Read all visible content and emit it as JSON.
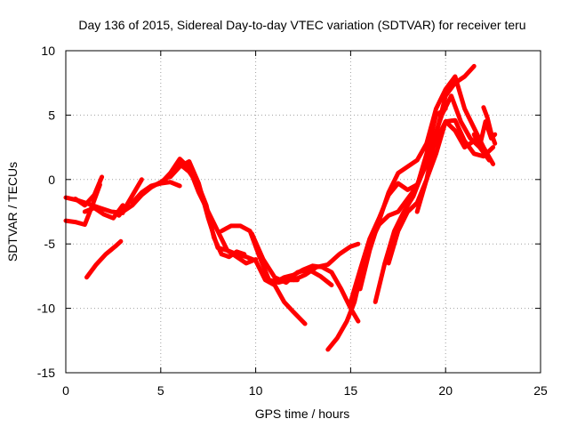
{
  "chart_data": {
    "type": "line",
    "title": "Day 136 of 2015, Sidereal Day-to-day VTEC variation (SDTVAR) for receiver teru",
    "xlabel": "GPS time / hours",
    "ylabel": "SDTVAR / TECUs",
    "xlim": [
      0,
      25
    ],
    "ylim": [
      -15,
      10
    ],
    "xticks": [
      0,
      5,
      10,
      15,
      20,
      25
    ],
    "yticks": [
      -15,
      -10,
      -5,
      0,
      5,
      10
    ],
    "xtick_labels": [
      "0",
      "5",
      "10",
      "15",
      "20",
      "25"
    ],
    "ytick_labels": [
      "-15",
      "-10",
      "-5",
      "0",
      "5",
      "10"
    ],
    "grid": true,
    "legend": "none",
    "color": "#ff0000",
    "series": [
      {
        "x": [
          0.0,
          0.6,
          1.2,
          1.8,
          2.4,
          3.0
        ],
        "y": [
          -1.4,
          -1.6,
          -1.9,
          -2.2,
          -2.5,
          -2.6
        ]
      },
      {
        "x": [
          0.0,
          0.5,
          1.0,
          1.4,
          1.8
        ],
        "y": [
          -3.2,
          -3.3,
          -3.5,
          -2.0,
          -0.4
        ]
      },
      {
        "x": [
          0.5,
          1.0,
          1.5,
          1.9
        ],
        "y": [
          -1.5,
          -2.0,
          -1.2,
          0.2
        ]
      },
      {
        "x": [
          1.0,
          1.5,
          2.0,
          2.5,
          3.0
        ],
        "y": [
          -2.5,
          -2.2,
          -2.7,
          -3.0,
          -2.0
        ]
      },
      {
        "x": [
          1.1,
          1.6,
          2.1,
          2.6,
          2.9
        ],
        "y": [
          -7.6,
          -6.6,
          -5.8,
          -5.2,
          -4.8
        ]
      },
      {
        "x": [
          2.8,
          3.2,
          3.6,
          4.0
        ],
        "y": [
          -2.8,
          -2.0,
          -1.0,
          0.0
        ]
      },
      {
        "x": [
          3.0,
          3.5,
          4.0,
          4.5,
          5.0,
          5.5,
          6.0,
          6.5,
          7.0,
          7.4,
          7.8,
          8.2,
          8.6,
          9.0,
          9.4
        ],
        "y": [
          -2.5,
          -2.0,
          -1.2,
          -0.6,
          -0.2,
          0.3,
          1.2,
          0.6,
          -0.5,
          -2.0,
          -4.5,
          -5.8,
          -6.0,
          -5.6,
          -5.8
        ]
      },
      {
        "x": [
          3.5,
          4.0,
          4.5,
          5.0,
          5.5,
          6.0
        ],
        "y": [
          -1.8,
          -1.0,
          -0.5,
          -0.3,
          -0.2,
          -0.5
        ]
      },
      {
        "x": [
          4.5,
          5.0,
          5.5,
          6.0,
          6.5,
          7.0,
          7.5,
          8.0,
          8.5,
          9.0,
          9.5,
          10.0
        ],
        "y": [
          -0.5,
          -0.3,
          0.5,
          1.6,
          0.9,
          -1.0,
          -2.5,
          -4.0,
          -5.5,
          -6.0,
          -6.5,
          -6.2
        ]
      },
      {
        "x": [
          5.5,
          6.0,
          6.5,
          7.0,
          7.5,
          8.0,
          8.5,
          9.0,
          9.5,
          10.0,
          10.5,
          11.0,
          11.5,
          12.0,
          12.6
        ],
        "y": [
          0.2,
          1.0,
          1.4,
          -0.3,
          -3.0,
          -5.3,
          -5.5,
          -5.8,
          -6.0,
          -6.3,
          -7.8,
          -8.2,
          -9.5,
          -10.3,
          -11.2
        ]
      },
      {
        "x": [
          8.2,
          8.7,
          9.2,
          9.7,
          10.2,
          10.7,
          11.2,
          11.7,
          12.2
        ],
        "y": [
          -4.0,
          -3.6,
          -3.6,
          -4.0,
          -6.0,
          -7.8,
          -8.0,
          -7.8,
          -7.8
        ]
      },
      {
        "x": [
          9.8,
          10.4,
          11.0,
          11.6,
          12.2,
          12.8,
          13.4,
          14.0
        ],
        "y": [
          -4.2,
          -6.2,
          -7.6,
          -8.0,
          -7.2,
          -7.0,
          -7.5,
          -8.2
        ]
      },
      {
        "x": [
          11.0,
          11.5,
          12.0,
          12.5,
          13.0,
          13.5,
          14.0,
          14.5,
          15.0,
          15.4
        ],
        "y": [
          -8.0,
          -7.6,
          -7.4,
          -7.0,
          -6.7,
          -6.8,
          -7.2,
          -8.5,
          -10.0,
          -11.0
        ]
      },
      {
        "x": [
          12.0,
          12.6,
          13.2,
          13.8,
          14.4,
          15.0,
          15.4
        ],
        "y": [
          -7.8,
          -7.4,
          -6.8,
          -6.6,
          -5.8,
          -5.2,
          -5.0
        ]
      },
      {
        "x": [
          13.8,
          14.3,
          14.8,
          15.2,
          15.6,
          16.0,
          16.5,
          17.0,
          17.5,
          18.0,
          18.5,
          19.0,
          19.5,
          20.0
        ],
        "y": [
          -13.2,
          -12.3,
          -11.0,
          -9.5,
          -7.0,
          -5.0,
          -3.5,
          -2.8,
          -2.5,
          -1.5,
          -0.5,
          2.0,
          5.0,
          5.5
        ]
      },
      {
        "x": [
          15.0,
          15.5,
          16.0,
          16.5,
          17.0,
          17.5,
          18.0,
          18.5,
          19.0,
          19.5,
          20.0,
          20.5,
          21.0,
          21.5,
          22.0
        ],
        "y": [
          -9.5,
          -7.0,
          -4.6,
          -3.0,
          -1.2,
          -0.3,
          -0.8,
          -0.4,
          1.2,
          3.0,
          4.5,
          3.8,
          2.5,
          3.0,
          2.2
        ]
      },
      {
        "x": [
          15.5,
          16.0,
          16.5,
          17.0,
          17.5,
          18.0,
          18.5,
          19.0,
          19.5,
          20.0,
          20.5,
          21.0,
          21.5,
          22.0,
          22.5
        ],
        "y": [
          -8.5,
          -5.5,
          -3.2,
          -1.0,
          0.5,
          1.0,
          1.5,
          2.8,
          5.5,
          7.0,
          8.0,
          5.5,
          4.0,
          2.5,
          1.2
        ]
      },
      {
        "x": [
          16.3,
          16.8,
          17.3,
          17.8,
          18.3,
          18.8,
          19.3,
          19.8,
          20.3,
          20.8,
          21.3,
          21.8,
          22.3
        ],
        "y": [
          -9.5,
          -6.5,
          -4.0,
          -2.5,
          -1.3,
          0.6,
          2.8,
          5.0,
          6.5,
          4.5,
          3.2,
          2.5,
          1.5
        ]
      },
      {
        "x": [
          17.0,
          17.5,
          18.0,
          18.5,
          19.0,
          19.5,
          20.0,
          20.5,
          21.0,
          21.5,
          22.0,
          22.5
        ],
        "y": [
          -6.5,
          -4.0,
          -2.5,
          -1.8,
          0.0,
          2.0,
          4.5,
          4.6,
          3.0,
          2.0,
          1.8,
          2.5
        ]
      },
      {
        "x": [
          18.5,
          19.0,
          19.5,
          20.0,
          20.5,
          21.0,
          21.5
        ],
        "y": [
          -2.5,
          0.0,
          3.5,
          6.5,
          7.5,
          8.0,
          8.8
        ]
      },
      {
        "x": [
          21.5,
          21.8,
          22.1,
          22.4,
          22.6
        ],
        "y": [
          3.5,
          2.6,
          4.5,
          3.2,
          3.5
        ]
      },
      {
        "x": [
          22.0,
          22.2,
          22.4,
          22.6
        ],
        "y": [
          5.6,
          4.8,
          3.6,
          2.8
        ]
      }
    ]
  }
}
